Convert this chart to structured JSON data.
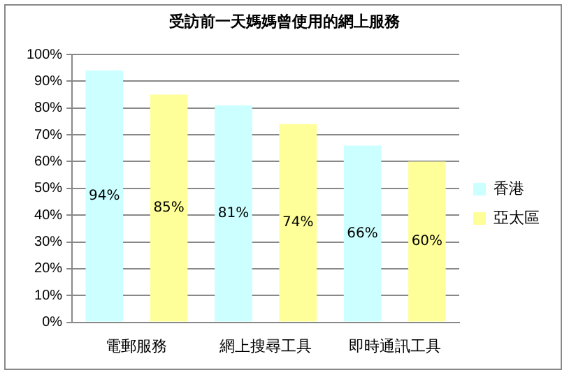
{
  "chart_data": {
    "type": "bar",
    "title": "受訪前一天媽媽曾使用的網上服務",
    "categories": [
      "電郵服務",
      "網上搜尋工具",
      "即時通訊工具"
    ],
    "series": [
      {
        "name": "香港",
        "color": "#ccffff",
        "values": [
          94,
          81,
          66
        ],
        "value_labels": [
          "94%",
          "81%",
          "66%"
        ]
      },
      {
        "name": "亞太區",
        "color": "#ffff99",
        "values": [
          85,
          74,
          60
        ],
        "value_labels": [
          "85%",
          "74%",
          "60%"
        ]
      }
    ],
    "ylim": [
      0,
      100
    ],
    "yticks": [
      {
        "value": 0,
        "label": "0%"
      },
      {
        "value": 10,
        "label": "10%"
      },
      {
        "value": 20,
        "label": "20%"
      },
      {
        "value": 30,
        "label": "30%"
      },
      {
        "value": 40,
        "label": "40%"
      },
      {
        "value": 50,
        "label": "50%"
      },
      {
        "value": 60,
        "label": "60%"
      },
      {
        "value": 70,
        "label": "70%"
      },
      {
        "value": 80,
        "label": "80%"
      },
      {
        "value": 90,
        "label": "90%"
      },
      {
        "value": 100,
        "label": "100%"
      }
    ],
    "grid": "y",
    "legend": "right"
  }
}
